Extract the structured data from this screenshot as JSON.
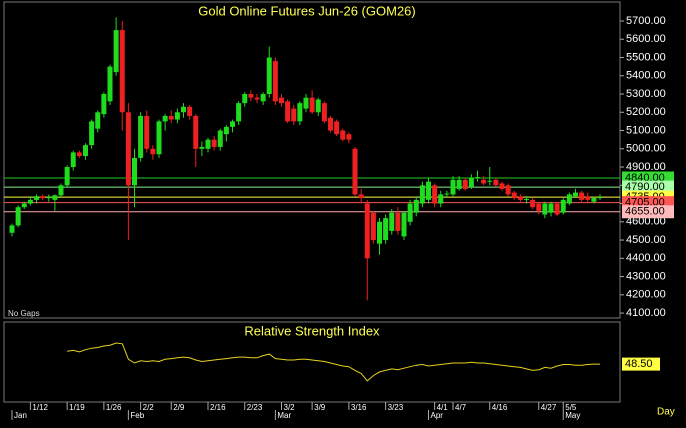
{
  "chart_data": {
    "type": "candlestick",
    "title": "Gold Online Futures Jun-26 (GOM26)",
    "note": "No Gaps",
    "x_axis_label": "Day",
    "categories": [
      null,
      null,
      null,
      "1/12",
      null,
      null,
      null,
      null,
      null,
      "1/19",
      null,
      null,
      null,
      null,
      null,
      "1/26",
      null,
      null,
      null,
      null,
      null,
      "2/2",
      null,
      null,
      null,
      null,
      "2/9",
      null,
      null,
      null,
      null,
      null,
      "2/16",
      null,
      null,
      null,
      null,
      null,
      "2/23",
      null,
      null,
      null,
      null,
      null,
      "3/2",
      null,
      null,
      null,
      null,
      "3/9",
      null,
      null,
      null,
      null,
      null,
      "3/16",
      null,
      null,
      null,
      null,
      null,
      "3/23",
      null,
      null,
      null,
      null,
      null,
      null,
      null,
      "4/1",
      null,
      null,
      "4/7",
      null,
      null,
      null,
      null,
      null,
      "4/16",
      null,
      null,
      null,
      null,
      null,
      null,
      null,
      "4/27",
      null,
      null,
      null,
      "5/5",
      null,
      null,
      null,
      null,
      null,
      null
    ],
    "months": [
      {
        "value": 0,
        "label": "Jan"
      },
      {
        "value": 19,
        "label": "Feb"
      },
      {
        "value": 43,
        "label": "Mar"
      },
      {
        "value": 68,
        "label": "Apr"
      },
      {
        "value": 90,
        "label": "May"
      }
    ],
    "ohlc": [
      [
        4540,
        4590,
        4520,
        4580
      ],
      [
        4580,
        4690,
        4570,
        4680
      ],
      [
        4680,
        4710,
        4670,
        4700
      ],
      [
        4700,
        4740,
        4690,
        4720
      ],
      [
        4720,
        4750,
        4700,
        4740
      ],
      [
        4740,
        4750,
        4720,
        4730
      ],
      [
        4730,
        4750,
        4710,
        4735
      ],
      [
        4720,
        4750,
        4660,
        4745
      ],
      [
        4745,
        4810,
        4730,
        4800
      ],
      [
        4800,
        4910,
        4790,
        4900
      ],
      [
        4900,
        4990,
        4880,
        4980
      ],
      [
        4980,
        4990,
        4950,
        4960
      ],
      [
        4960,
        5030,
        4940,
        5020
      ],
      [
        5020,
        5160,
        5000,
        5150
      ],
      [
        5110,
        5210,
        5090,
        5200
      ],
      [
        5190,
        5310,
        5170,
        5300
      ],
      [
        5260,
        5460,
        5240,
        5450
      ],
      [
        5420,
        5720,
        5400,
        5650
      ],
      [
        5650,
        5700,
        5100,
        5200
      ],
      [
        5200,
        5250,
        4500,
        4800
      ],
      [
        4800,
        5000,
        4680,
        4950
      ],
      [
        4950,
        5200,
        4930,
        5180
      ],
      [
        5180,
        5210,
        4980,
        5000
      ],
      [
        5000,
        5020,
        4940,
        4970
      ],
      [
        4970,
        5160,
        4950,
        5150
      ],
      [
        5150,
        5190,
        5100,
        5180
      ],
      [
        5180,
        5210,
        5140,
        5160
      ],
      [
        5160,
        5220,
        5140,
        5200
      ],
      [
        5200,
        5250,
        5170,
        5230
      ],
      [
        5230,
        5240,
        5160,
        5180
      ],
      [
        5180,
        5190,
        4900,
        5000
      ],
      [
        5000,
        5040,
        4960,
        5010
      ],
      [
        5000,
        5060,
        4980,
        5050
      ],
      [
        5050,
        5070,
        4990,
        5010
      ],
      [
        5010,
        5110,
        4990,
        5100
      ],
      [
        5080,
        5130,
        5040,
        5120
      ],
      [
        5120,
        5160,
        5090,
        5150
      ],
      [
        5150,
        5260,
        5130,
        5250
      ],
      [
        5250,
        5310,
        5230,
        5300
      ],
      [
        5300,
        5320,
        5260,
        5280
      ],
      [
        5280,
        5300,
        5250,
        5270
      ],
      [
        5260,
        5310,
        5240,
        5300
      ],
      [
        5300,
        5560,
        5280,
        5500
      ],
      [
        5480,
        5500,
        5240,
        5260
      ],
      [
        5280,
        5300,
        5230,
        5250
      ],
      [
        5260,
        5270,
        5140,
        5150
      ],
      [
        5220,
        5240,
        5130,
        5150
      ],
      [
        5150,
        5260,
        5130,
        5250
      ],
      [
        5220,
        5300,
        5200,
        5280
      ],
      [
        5280,
        5320,
        5190,
        5200
      ],
      [
        5200,
        5280,
        5180,
        5270
      ],
      [
        5250,
        5260,
        5140,
        5150
      ],
      [
        5170,
        5180,
        5090,
        5100
      ],
      [
        5150,
        5160,
        5070,
        5080
      ],
      [
        5100,
        5110,
        5040,
        5050
      ],
      [
        5080,
        5090,
        5030,
        5050
      ],
      [
        5000,
        5010,
        4740,
        4750
      ],
      [
        4750,
        4780,
        4700,
        4730
      ],
      [
        4700,
        4720,
        4170,
        4400
      ],
      [
        4650,
        4660,
        4480,
        4500
      ],
      [
        4480,
        4620,
        4420,
        4600
      ],
      [
        4500,
        4640,
        4480,
        4620
      ],
      [
        4550,
        4670,
        4530,
        4650
      ],
      [
        4650,
        4680,
        4530,
        4550
      ],
      [
        4520,
        4660,
        4500,
        4650
      ],
      [
        4600,
        4720,
        4580,
        4700
      ],
      [
        4650,
        4740,
        4630,
        4720
      ],
      [
        4700,
        4820,
        4680,
        4800
      ],
      [
        4720,
        4840,
        4700,
        4820
      ],
      [
        4800,
        4810,
        4680,
        4700
      ],
      [
        4700,
        4770,
        4680,
        4750
      ],
      [
        4750,
        4770,
        4730,
        4755
      ],
      [
        4750,
        4850,
        4740,
        4830
      ],
      [
        4780,
        4850,
        4770,
        4830
      ],
      [
        4830,
        4840,
        4770,
        4780
      ],
      [
        4790,
        4860,
        4780,
        4840
      ],
      [
        4840,
        4880,
        4820,
        4845
      ],
      [
        4830,
        4850,
        4800,
        4810
      ],
      [
        4820,
        4900,
        4800,
        4825
      ],
      [
        4830,
        4840,
        4790,
        4800
      ],
      [
        4810,
        4820,
        4770,
        4780
      ],
      [
        4800,
        4810,
        4740,
        4750
      ],
      [
        4760,
        4770,
        4720,
        4730
      ],
      [
        4740,
        4750,
        4710,
        4720
      ],
      [
        4720,
        4740,
        4700,
        4725
      ],
      [
        4720,
        4730,
        4670,
        4680
      ],
      [
        4700,
        4710,
        4640,
        4660
      ],
      [
        4640,
        4710,
        4620,
        4700
      ],
      [
        4650,
        4710,
        4630,
        4700
      ],
      [
        4700,
        4710,
        4630,
        4640
      ],
      [
        4650,
        4730,
        4640,
        4720
      ],
      [
        4700,
        4760,
        4690,
        4750
      ],
      [
        4740,
        4780,
        4730,
        4760
      ],
      [
        4760,
        4770,
        4710,
        4720
      ],
      [
        4740,
        4760,
        4700,
        4720
      ],
      [
        4710,
        4740,
        4700,
        4730
      ],
      [
        4730,
        4750,
        4720,
        4735
      ]
    ],
    "up_color": "#1fdc1f",
    "down_color": "#ee2020",
    "ylim": [
      4073,
      5804
    ],
    "yticks": [
      {
        "value": 4100,
        "label": "4100.00"
      },
      {
        "value": 4200,
        "label": "4200.00"
      },
      {
        "value": 4300,
        "label": "4300.00"
      },
      {
        "value": 4400,
        "label": "4400.00"
      },
      {
        "value": 4500,
        "label": "4500.00"
      },
      {
        "value": 4600,
        "label": "4600.00"
      },
      {
        "value": 4700,
        "label": "4700.00"
      },
      {
        "value": 4800,
        "label": "4800.00"
      },
      {
        "value": 4900,
        "label": "4900.00"
      },
      {
        "value": 5000,
        "label": "5000.00"
      },
      {
        "value": 5100,
        "label": "5100.00"
      },
      {
        "value": 5200,
        "label": "5200.00"
      },
      {
        "value": 5300,
        "label": "5300.00"
      },
      {
        "value": 5400,
        "label": "5400.00"
      },
      {
        "value": 5500,
        "label": "5500.00"
      },
      {
        "value": 5600,
        "label": "5600.00"
      },
      {
        "value": 5700,
        "label": "5700.00"
      }
    ],
    "levels": [
      {
        "value": 4840,
        "label": "4840.00",
        "color": "#22cc22",
        "label_bg": "#33dd33"
      },
      {
        "value": 4790,
        "label": "4790.00",
        "color": "#88ee88",
        "label_bg": "#aaffaa"
      },
      {
        "value": 4735,
        "label": "4735.00",
        "color": "#ffff44",
        "label_bg": "#ffff44"
      },
      {
        "value": 4705,
        "label": "4705.00",
        "color": "#ff5555",
        "label_bg": "#ff5555"
      },
      {
        "value": 4655,
        "label": "4655.00",
        "color": "#ffaaaa",
        "label_bg": "#ffbbbb"
      }
    ],
    "rsi": {
      "title": "Relative Strength Index",
      "color": "#e6d21e",
      "ylim": [
        0,
        100
      ],
      "last_value": {
        "value": 48.5,
        "label": "48.50"
      },
      "values": [
        null,
        null,
        null,
        null,
        null,
        null,
        null,
        null,
        null,
        66,
        67,
        65,
        68,
        70,
        71,
        73,
        74,
        77,
        76,
        55,
        50,
        53,
        52,
        53,
        52,
        55,
        56,
        57,
        58,
        57,
        54,
        52,
        53,
        54,
        55,
        56,
        57,
        58,
        58,
        57,
        57,
        60,
        62,
        56,
        55,
        54,
        54,
        55,
        55,
        54,
        53,
        52,
        50,
        48,
        46,
        45,
        40,
        36,
        26,
        33,
        38,
        40,
        42,
        41,
        43,
        45,
        47,
        48,
        46,
        47,
        48,
        49,
        50,
        50,
        50,
        51,
        50,
        50,
        49,
        48,
        47,
        46,
        45,
        44,
        42,
        40,
        41,
        44,
        43,
        46,
        48,
        48,
        47,
        47,
        48,
        48.5,
        48.5
      ]
    }
  }
}
